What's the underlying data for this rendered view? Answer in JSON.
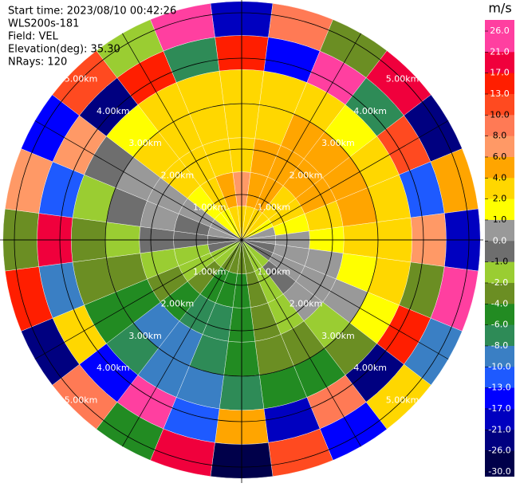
{
  "chart_data": {
    "type": "ppi",
    "info": [
      "Start time: 2023/08/10 00:42:26",
      "WLS200s-181",
      "Field: VEL",
      "Elevation(deg): 35.30",
      "NRays: 120"
    ],
    "unit": "m/s",
    "azimuths": [
      0,
      15,
      30,
      45,
      60,
      75,
      90,
      105,
      120,
      135,
      150,
      165,
      180,
      195,
      210,
      225,
      240,
      255,
      270,
      285,
      300,
      315,
      330,
      345
    ],
    "gate_edges": [
      0,
      0.75,
      1.5,
      2.25,
      3,
      3.75,
      4.5,
      5.25
    ],
    "values": [
      [
        3,
        6,
        3,
        3,
        3,
        14,
        -20
      ],
      [
        3,
        5,
        5,
        3,
        3,
        -15,
        9
      ],
      [
        2,
        5,
        5,
        5,
        3,
        22,
        -3
      ],
      [
        2,
        3,
        5,
        5,
        1.5,
        -8,
        18
      ],
      [
        1.5,
        3,
        5,
        5,
        3,
        11,
        -24
      ],
      [
        0.5,
        1.5,
        3,
        5,
        3,
        -12,
        5
      ],
      [
        0.5,
        0.5,
        1.5,
        3,
        3,
        7,
        -18
      ],
      [
        -0.5,
        0.5,
        0.5,
        1.5,
        3,
        -3,
        24
      ],
      [
        -0.5,
        0.5,
        0.5,
        0.5,
        1.5,
        15,
        -9
      ],
      [
        -1.5,
        -0.5,
        0.5,
        -1.5,
        -3,
        -22,
        2.5
      ],
      [
        -1.5,
        -1.5,
        -1.5,
        -3,
        -5,
        9,
        -14
      ],
      [
        -3,
        -3,
        -3,
        -3,
        -5,
        -19,
        12
      ],
      [
        -3,
        -5,
        -5,
        -5,
        -7,
        5,
        -27
      ],
      [
        -3,
        -5,
        -7,
        -7,
        -9,
        -11,
        19
      ],
      [
        -3,
        -5,
        -7,
        -9,
        -9,
        24,
        -6
      ],
      [
        -1.5,
        -3,
        -5,
        -9,
        -7,
        -15,
        8
      ],
      [
        -1.5,
        -1.5,
        -3,
        -5,
        -5,
        3,
        -22
      ],
      [
        -0.5,
        -1.5,
        -1.5,
        -3,
        -3,
        -9,
        14
      ],
      [
        -0.5,
        -0.5,
        -0.5,
        -1.5,
        -3,
        20,
        -4
      ],
      [
        0.5,
        -0.5,
        0.5,
        -0.5,
        -1.5,
        -12,
        7
      ],
      [
        0.5,
        0.5,
        0.5,
        0.5,
        -0.5,
        6,
        -17
      ],
      [
        1.5,
        1.5,
        3,
        3,
        1.5,
        -25,
        11
      ],
      [
        1.5,
        3,
        3,
        3,
        3,
        16,
        -2
      ],
      [
        3,
        5,
        3,
        3,
        3,
        -7,
        23
      ]
    ],
    "range_rings": [
      {
        "value": 1,
        "label": "1.00km"
      },
      {
        "value": 2,
        "label": "2.00km"
      },
      {
        "value": 3,
        "label": "3.00km"
      },
      {
        "value": 4,
        "label": "4.00km"
      },
      {
        "value": 5,
        "label": "5.00km"
      }
    ],
    "colorbar_ticks": [
      {
        "value": 26,
        "label": "26.0"
      },
      {
        "value": 21,
        "label": "21.0"
      },
      {
        "value": 17,
        "label": "17.0"
      },
      {
        "value": 13,
        "label": "13.0"
      },
      {
        "value": 10,
        "label": "10.0"
      },
      {
        "value": 8,
        "label": "8.0"
      },
      {
        "value": 6,
        "label": "6.0"
      },
      {
        "value": 4,
        "label": "4.0"
      },
      {
        "value": 2,
        "label": "2.0"
      },
      {
        "value": 1,
        "label": "1.0"
      },
      {
        "value": 0,
        "label": "0.0"
      },
      {
        "value": -1,
        "label": "-1.0"
      },
      {
        "value": -2,
        "label": "-2.0"
      },
      {
        "value": -4,
        "label": "-4.0"
      },
      {
        "value": -6,
        "label": "-6.0"
      },
      {
        "value": -8,
        "label": "-8.0"
      },
      {
        "value": -10,
        "label": "-10.0"
      },
      {
        "value": -13,
        "label": "-13.0"
      },
      {
        "value": -17,
        "label": "-17.0"
      },
      {
        "value": -21,
        "label": "-21.0"
      },
      {
        "value": -26,
        "label": "-26.0"
      },
      {
        "value": -30,
        "label": "-30.0"
      }
    ],
    "colors": [
      "#ff3fa0",
      "#f0003c",
      "#ff1e00",
      "#ff4a20",
      "#ff7a55",
      "#ff9966",
      "#ffa500",
      "#ffd700",
      "#ffff00",
      "#999999",
      "#6e6e6e",
      "#9acd32",
      "#6b8e23",
      "#228b22",
      "#2e8b57",
      "#3a7fc4",
      "#1e5aff",
      "#0000ff",
      "#0000c0",
      "#000080",
      "#00004a"
    ]
  }
}
